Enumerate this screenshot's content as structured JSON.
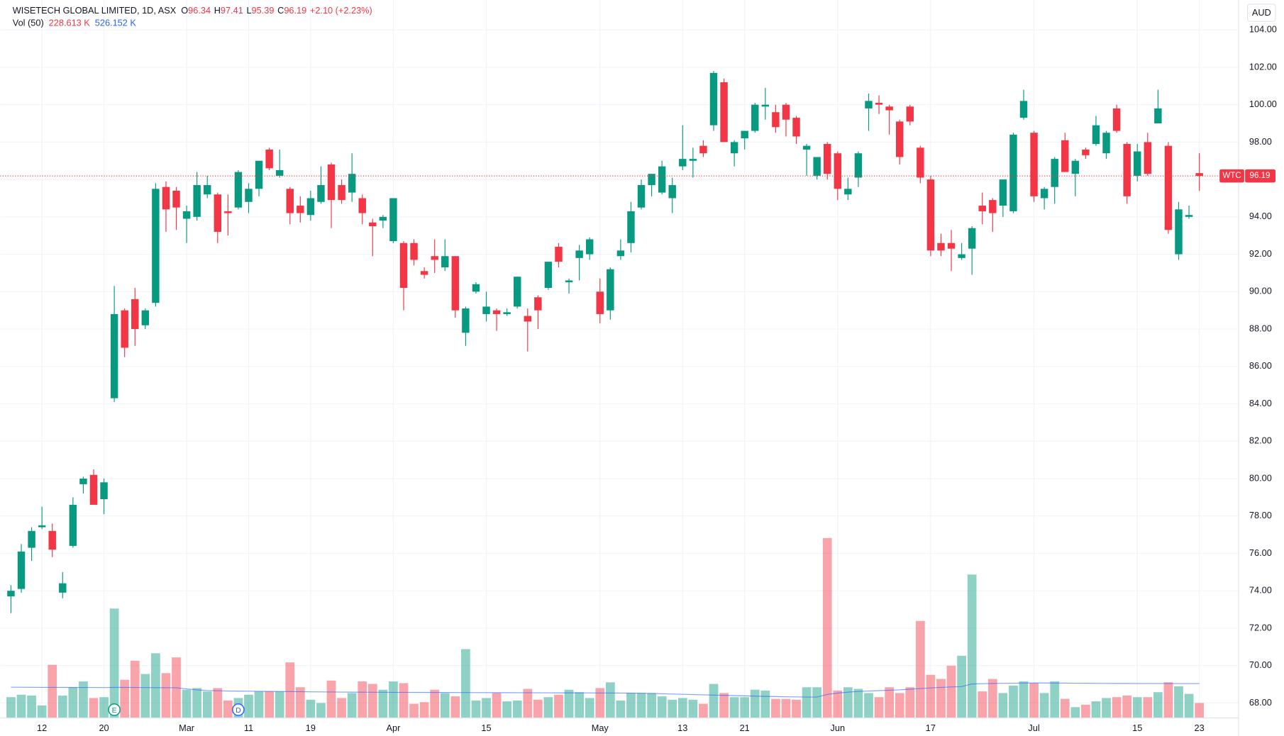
{
  "chart_data": {
    "type": "candlestick",
    "title": "WISETECH GLOBAL LIMITED, 1D, ASX",
    "ohlc_legend": [
      {
        "label": "O",
        "value": 96.34
      },
      {
        "label": "H",
        "value": 97.41
      },
      {
        "label": "L",
        "value": 95.39
      },
      {
        "label": "C",
        "value": 96.19
      }
    ],
    "change": "+2.10 (+2.23%)",
    "volume_legend": {
      "label": "Vol (50)",
      "volume": "228.613 K",
      "ma": "526.152 K"
    },
    "currency": "AUD",
    "symbol": "WTC",
    "last_price": 96.19,
    "categories": [
      null,
      null,
      null,
      "12",
      null,
      null,
      null,
      null,
      null,
      "20",
      null,
      null,
      null,
      null,
      null,
      null,
      null,
      "Mar",
      null,
      null,
      null,
      null,
      null,
      "11",
      null,
      null,
      null,
      null,
      null,
      "19",
      null,
      null,
      null,
      null,
      null,
      null,
      null,
      "Apr",
      null,
      null,
      null,
      null,
      null,
      null,
      null,
      null,
      "15",
      null,
      null,
      null,
      null,
      null,
      null,
      null,
      null,
      null,
      null,
      "May",
      null,
      null,
      null,
      null,
      null,
      null,
      null,
      "13",
      null,
      null,
      null,
      null,
      null,
      "21",
      null,
      null,
      null,
      null,
      null,
      null,
      null,
      null,
      "Jun",
      null,
      null,
      null,
      null,
      null,
      null,
      null,
      null,
      "17",
      null,
      null,
      null,
      null,
      null,
      null,
      null,
      null,
      null,
      "Jul",
      null,
      null,
      null,
      null,
      null,
      null,
      null,
      null,
      null,
      "15",
      null,
      null,
      null,
      null,
      null,
      "23"
    ],
    "open": [
      73.7,
      74.1,
      76.3,
      77.4,
      77.2,
      73.9,
      76.4,
      79.7,
      80.2,
      78.9,
      84.3,
      89.0,
      89.6,
      88.2,
      89.4,
      95.6,
      95.4,
      93.9,
      94.0,
      95.2,
      95.2,
      94.3,
      94.5,
      94.8,
      95.5,
      97.6,
      96.2,
      95.5,
      94.6,
      94.1,
      94.8,
      96.8,
      95.7,
      95.3,
      95.0,
      93.7,
      93.8,
      92.7,
      92.6,
      92.6,
      91.1,
      91.9,
      91.3,
      91.9,
      87.8,
      90.0,
      88.8,
      89.0,
      88.8,
      89.2,
      88.7,
      89.7,
      90.2,
      92.4,
      90.5,
      91.8,
      92.0,
      90.0,
      89.0,
      91.9,
      92.6,
      94.5,
      95.7,
      95.3,
      95.0,
      96.7,
      97.0,
      97.8,
      98.9,
      101.2,
      97.4,
      98.2,
      98.6,
      99.9,
      99.6,
      100.0,
      99.3,
      97.6,
      96.2,
      97.9,
      97.4,
      95.2,
      96.1,
      99.8,
      100.1,
      99.9,
      99.1,
      99.9,
      97.7,
      96.0,
      92.6,
      92.6,
      91.8,
      92.3,
      94.6,
      94.9,
      94.6,
      94.3,
      99.3,
      98.5,
      95.0,
      95.6,
      98.1,
      96.3,
      97.6,
      97.9,
      97.4,
      99.8,
      97.9,
      96.2,
      98.0,
      99.0,
      97.8,
      92.0,
      94.0,
      96.34
    ],
    "high": [
      74.3,
      76.5,
      77.4,
      78.5,
      77.6,
      75.0,
      79.0,
      80.1,
      80.5,
      80.0,
      90.3,
      89.1,
      90.2,
      89.1,
      95.8,
      95.9,
      95.6,
      94.6,
      96.4,
      96.2,
      95.3,
      95.2,
      96.5,
      95.8,
      97.0,
      97.7,
      97.6,
      95.6,
      95.1,
      95.4,
      96.7,
      96.9,
      96.0,
      97.4,
      95.2,
      93.9,
      94.1,
      95.0,
      92.7,
      92.8,
      91.3,
      92.8,
      92.8,
      91.9,
      89.2,
      90.5,
      90.0,
      89.1,
      89.1,
      90.8,
      89.1,
      89.8,
      91.6,
      92.6,
      90.7,
      92.5,
      92.9,
      90.7,
      91.3,
      92.8,
      94.8,
      96.0,
      96.3,
      97.0,
      96.1,
      98.9,
      97.7,
      98.1,
      101.8,
      101.4,
      98.1,
      98.6,
      100.1,
      100.9,
      100.0,
      100.1,
      99.4,
      97.9,
      97.2,
      98.0,
      97.5,
      96.1,
      97.5,
      100.6,
      100.5,
      100.0,
      99.2,
      100.0,
      97.8,
      96.2,
      93.1,
      93.3,
      92.6,
      93.5,
      95.3,
      95.0,
      96.0,
      98.5,
      100.8,
      98.6,
      95.6,
      97.2,
      98.5,
      97.1,
      97.7,
      99.4,
      98.6,
      100.0,
      98.0,
      97.9,
      98.5,
      100.8,
      98.0,
      94.8,
      94.6,
      97.41
    ],
    "low": [
      72.8,
      73.9,
      75.6,
      77.3,
      75.8,
      73.6,
      76.3,
      79.2,
      78.6,
      78.1,
      84.1,
      86.5,
      87.1,
      88.0,
      89.2,
      93.2,
      93.3,
      92.6,
      93.8,
      95.0,
      92.6,
      93.0,
      94.4,
      94.2,
      95.1,
      96.5,
      96.1,
      93.6,
      93.7,
      93.8,
      94.7,
      93.4,
      94.7,
      94.8,
      93.6,
      91.9,
      93.4,
      92.6,
      89.0,
      91.4,
      90.7,
      91.0,
      91.1,
      88.6,
      87.1,
      89.9,
      88.4,
      87.9,
      88.7,
      89.1,
      86.8,
      88.0,
      90.1,
      91.3,
      89.9,
      90.6,
      91.7,
      88.3,
      88.5,
      91.7,
      92.1,
      94.4,
      95.1,
      95.2,
      94.2,
      96.5,
      96.1,
      97.2,
      98.6,
      98.0,
      96.7,
      97.6,
      98.5,
      99.2,
      98.5,
      98.3,
      97.9,
      96.2,
      96.0,
      96.0,
      94.9,
      94.9,
      95.6,
      98.6,
      99.5,
      98.4,
      96.8,
      98.9,
      95.8,
      91.9,
      91.9,
      91.1,
      91.7,
      90.9,
      93.6,
      93.2,
      94.0,
      94.2,
      99.2,
      94.8,
      94.4,
      94.7,
      96.4,
      95.1,
      97.1,
      97.8,
      97.1,
      98.5,
      94.7,
      95.9,
      96.2,
      99.0,
      93.1,
      91.7,
      93.9,
      95.39
    ],
    "close": [
      74.0,
      76.1,
      77.2,
      77.5,
      76.2,
      74.4,
      78.6,
      80.0,
      78.6,
      79.8,
      88.8,
      87.0,
      88.0,
      89.0,
      95.5,
      94.4,
      94.5,
      94.3,
      95.7,
      95.7,
      93.2,
      94.2,
      96.4,
      95.5,
      97.0,
      96.6,
      96.5,
      94.2,
      94.2,
      95.0,
      95.7,
      94.9,
      94.9,
      96.3,
      94.2,
      93.5,
      94.0,
      95.0,
      90.2,
      91.7,
      90.9,
      91.7,
      91.9,
      89.0,
      89.1,
      90.4,
      89.2,
      88.8,
      88.9,
      90.8,
      88.4,
      89.0,
      91.6,
      91.6,
      90.6,
      92.2,
      92.8,
      88.8,
      91.2,
      92.2,
      94.3,
      95.7,
      96.3,
      96.7,
      95.7,
      97.1,
      97.1,
      97.4,
      101.7,
      98.0,
      98.0,
      98.6,
      100.0,
      100.0,
      98.8,
      99.2,
      98.3,
      97.8,
      97.2,
      96.3,
      95.5,
      95.5,
      97.4,
      100.2,
      100.0,
      99.7,
      97.2,
      99.1,
      96.1,
      92.2,
      92.2,
      92.3,
      92.0,
      93.4,
      94.3,
      94.2,
      96.0,
      98.4,
      100.2,
      95.1,
      95.5,
      97.1,
      96.4,
      97.0,
      97.3,
      98.9,
      98.5,
      98.6,
      95.1,
      97.5,
      96.3,
      99.8,
      93.3,
      94.4,
      94.1,
      96.19
    ],
    "volume": [
      318,
      356,
      343,
      191,
      813,
      343,
      470,
      559,
      305,
      318,
      1676,
      584,
      876,
      673,
      991,
      686,
      927,
      432,
      457,
      406,
      457,
      267,
      305,
      356,
      406,
      406,
      406,
      851,
      470,
      279,
      229,
      572,
      305,
      381,
      559,
      521,
      432,
      559,
      533,
      216,
      241,
      432,
      381,
      330,
      1054,
      267,
      305,
      381,
      254,
      267,
      445,
      279,
      318,
      356,
      432,
      394,
      305,
      457,
      546,
      267,
      381,
      381,
      381,
      330,
      279,
      305,
      279,
      216,
      521,
      381,
      318,
      318,
      432,
      419,
      292,
      292,
      279,
      470,
      470,
      2756,
      419,
      470,
      445,
      381,
      318,
      470,
      381,
      470,
      1486,
      660,
      597,
      800,
      953,
      2197,
      406,
      597,
      381,
      495,
      559,
      533,
      381,
      559,
      292,
      165,
      203,
      254,
      305,
      318,
      343,
      318,
      318,
      394,
      546,
      483,
      368,
      228.613
    ],
    "volume_ma": [
      470,
      470,
      469,
      468,
      468,
      467,
      467,
      466,
      466,
      465,
      468,
      467,
      466,
      465,
      464,
      463,
      462,
      445,
      430,
      420,
      416,
      412,
      410,
      409,
      408,
      406,
      405,
      403,
      402,
      400,
      398,
      397,
      396,
      395,
      394,
      393,
      393,
      392,
      392,
      391,
      391,
      390,
      390,
      389,
      389,
      388,
      388,
      387,
      387,
      386,
      386,
      385,
      385,
      384,
      384,
      383,
      383,
      382,
      382,
      381,
      380,
      378,
      374,
      370,
      366,
      362,
      358,
      354,
      350,
      346,
      342,
      338,
      334,
      330,
      327,
      324,
      322,
      320,
      320,
      360,
      380,
      395,
      405,
      412,
      418,
      424,
      430,
      440,
      450,
      460,
      468,
      474,
      480,
      520,
      525,
      528,
      530,
      532,
      534,
      535,
      535,
      534,
      533,
      532,
      531,
      530,
      529,
      528,
      528,
      527,
      527,
      527,
      526.5,
      526.3,
      526.2,
      526.152
    ],
    "up_color": "#089981",
    "down_color": "#f23645",
    "ma_color": "#2962ff",
    "ylim": [
      67.2,
      105.6
    ],
    "yticks": [
      {
        "value": 68,
        "label": "68.00"
      },
      {
        "value": 70,
        "label": "70.00"
      },
      {
        "value": 72,
        "label": "72.00"
      },
      {
        "value": 74,
        "label": "74.00"
      },
      {
        "value": 76,
        "label": "76.00"
      },
      {
        "value": 78,
        "label": "78.00"
      },
      {
        "value": 80,
        "label": "80.00"
      },
      {
        "value": 82,
        "label": "82.00"
      },
      {
        "value": 84,
        "label": "84.00"
      },
      {
        "value": 86,
        "label": "86.00"
      },
      {
        "value": 88,
        "label": "88.00"
      },
      {
        "value": 90,
        "label": "90.00"
      },
      {
        "value": 92,
        "label": "92.00"
      },
      {
        "value": 94,
        "label": "94.00"
      },
      {
        "value": 96,
        "label": "96.00"
      },
      {
        "value": 98,
        "label": "98.00"
      },
      {
        "value": 100,
        "label": "100.00"
      },
      {
        "value": 102,
        "label": "102.00"
      },
      {
        "value": 104,
        "label": "104.00"
      }
    ],
    "volume_lim": [
      0,
      11000
    ],
    "events": [
      {
        "label": "E",
        "at": 10,
        "color": "#089981"
      },
      {
        "label": "D",
        "at": 22,
        "color": "#2962ff"
      }
    ],
    "grid": true
  }
}
